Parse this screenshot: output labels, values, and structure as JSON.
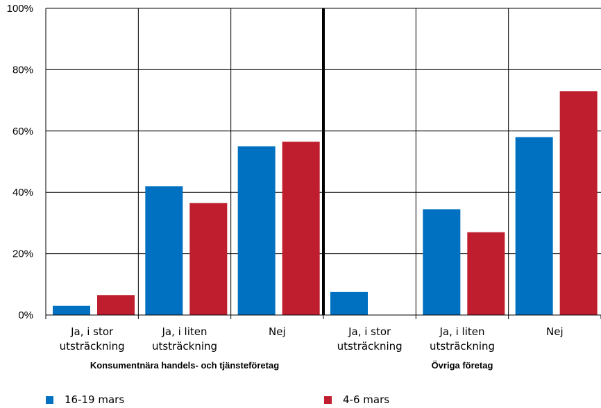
{
  "chart_data": {
    "type": "bar",
    "ylim": [
      0,
      100
    ],
    "yticks": [
      0,
      20,
      40,
      60,
      80,
      100
    ],
    "ytick_suffix": "%",
    "grid": true,
    "legend_position": "bottom",
    "groups": [
      {
        "name": "Konsumentnära handels- och tjänsteföretag",
        "categories": [
          [
            "Ja, i stor",
            "utsträckning"
          ],
          [
            "Ja, i liten",
            "utsträckning"
          ],
          [
            "Nej"
          ]
        ]
      },
      {
        "name": "Övriga företag",
        "categories": [
          [
            "Ja, i stor",
            "utsträckning"
          ],
          [
            "Ja, i liten",
            "utsträckning"
          ],
          [
            "Nej"
          ]
        ]
      }
    ],
    "series": [
      {
        "name": "16-19 mars",
        "color": "#0070C0",
        "values": [
          3,
          42,
          55,
          7.5,
          34.5,
          58
        ]
      },
      {
        "name": "4-6 mars",
        "color": "#BE1E2D",
        "values": [
          6.5,
          36.5,
          56.5,
          null,
          27,
          73
        ]
      }
    ]
  }
}
